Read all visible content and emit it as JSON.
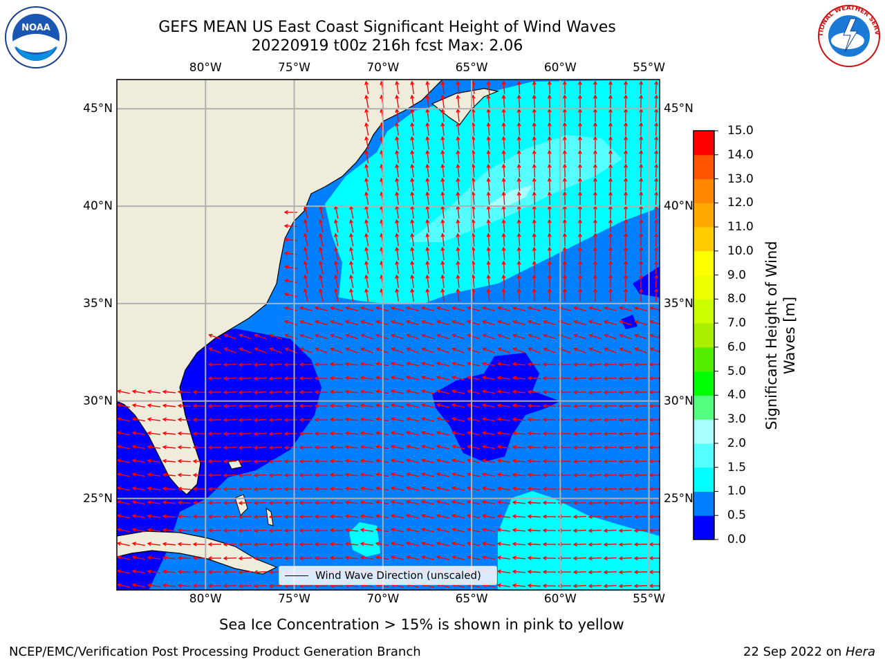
{
  "header": {
    "title_line1": "GEFS MEAN US East Coast Significant Height of Wind Waves",
    "title_line2": "20220919 t00z 216h fcst   Max: 2.06"
  },
  "logos": {
    "left": {
      "name": "noaa-logo",
      "text": "NOAA",
      "ring_text": "NATIONAL OCEANIC AND ATMOSPHERIC ADMINISTRATION · U.S. DEPARTMENT OF COMMERCE"
    },
    "right": {
      "name": "nws-logo",
      "ring_text": "NATIONAL WEATHER SERVICE"
    }
  },
  "map": {
    "lon_ticks": [
      "80°W",
      "75°W",
      "70°W",
      "65°W",
      "60°W",
      "55°W"
    ],
    "lat_ticks": [
      "45°N",
      "40°N",
      "35°N",
      "30°N",
      "25°N"
    ],
    "lon_values": [
      -80,
      -75,
      -70,
      -65,
      -60,
      -55
    ],
    "lat_values": [
      45,
      40,
      35,
      30,
      25
    ],
    "extent": {
      "lon": [
        -85,
        -54.4
      ],
      "lat": [
        20.3,
        46.5
      ]
    },
    "land_color": "#efecdc",
    "arrow_color": "#ff0000",
    "legend_label": "Wind Wave Direction (unscaled)"
  },
  "colorbar": {
    "label": "Significant Height of Wind Waves [m]",
    "levels": [
      "0.0",
      "0.5",
      "1.0",
      "1.5",
      "2.0",
      "3.0",
      "4.0",
      "5.0",
      "6.0",
      "7.0",
      "8.0",
      "9.0",
      "10.0",
      "11.0",
      "12.0",
      "13.0",
      "14.0",
      "15.0"
    ],
    "colors": [
      "#0000ff",
      "#0080ff",
      "#00ffff",
      "#55ffff",
      "#aaffff",
      "#55ff80",
      "#00ff00",
      "#55ee00",
      "#aaee00",
      "#ccff00",
      "#eeff00",
      "#ffff00",
      "#ffcc00",
      "#ffaa00",
      "#ff8800",
      "#ff5500",
      "#ff0000"
    ]
  },
  "notes": {
    "sea_ice": "Sea Ice Concentration > 15% is shown in pink to yellow",
    "producer": "NCEP/EMC/Verification Post Processing Product Generation Branch",
    "date_prefix": "22 Sep 2022 on ",
    "machine": "Hera"
  }
}
